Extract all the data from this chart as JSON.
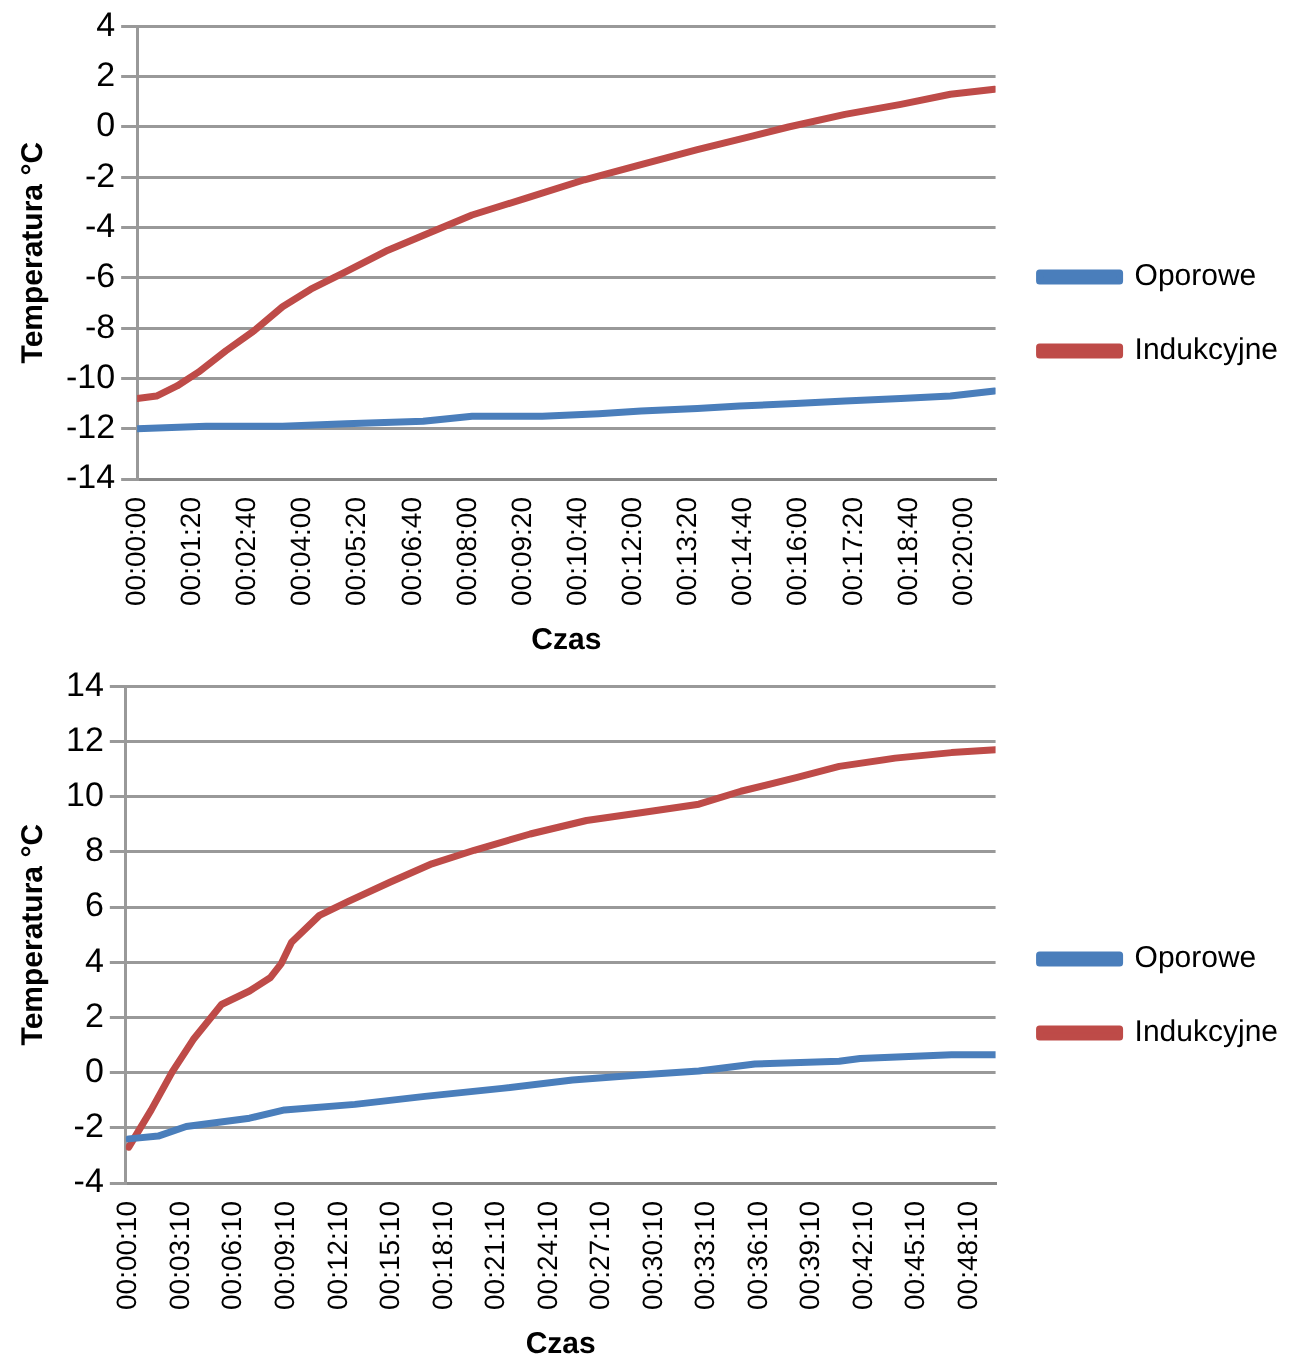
{
  "chart_data": [
    {
      "type": "line",
      "xlabel": "Czas",
      "ylabel": "Temperatura °C",
      "xlim": [
        0,
        0.346
      ],
      "ylim": [
        -14,
        4
      ],
      "yticks": [
        -14,
        -12,
        -10,
        -8,
        -6,
        -4,
        -2,
        0,
        2,
        4
      ],
      "xticks": [
        {
          "value": 0,
          "label": "00:00:00"
        },
        {
          "value": 0.02222,
          "label": "00:01:20"
        },
        {
          "value": 0.04444,
          "label": "00:02:40"
        },
        {
          "value": 0.06667,
          "label": "00:04:00"
        },
        {
          "value": 0.08889,
          "label": "00:05:20"
        },
        {
          "value": 0.11111,
          "label": "00:06:40"
        },
        {
          "value": 0.13333,
          "label": "00:08:00"
        },
        {
          "value": 0.15556,
          "label": "00:09:20"
        },
        {
          "value": 0.17778,
          "label": "00:10:40"
        },
        {
          "value": 0.2,
          "label": "00:12:00"
        },
        {
          "value": 0.22222,
          "label": "00:13:20"
        },
        {
          "value": 0.24444,
          "label": "00:14:40"
        },
        {
          "value": 0.26667,
          "label": "00:16:00"
        },
        {
          "value": 0.28889,
          "label": "00:17:20"
        },
        {
          "value": 0.31111,
          "label": "00:18:40"
        },
        {
          "value": 0.33333,
          "label": "00:20:00"
        }
      ],
      "grid": "y",
      "legend": "right",
      "marker": "none",
      "line_style": "solid",
      "series": [
        {
          "name": "Oporowe",
          "color": "#4a7ebb",
          "x": [
            0,
            0.0278,
            0.0586,
            0.0842,
            0.1153,
            0.135,
            0.1633,
            0.1861,
            0.2031,
            0.2258,
            0.2428,
            0.2653,
            0.2853,
            0.3078,
            0.3278,
            0.3456
          ],
          "values": [
            -12,
            -11.9,
            -11.9,
            -11.8,
            -11.7,
            -11.5,
            -11.5,
            -11.4,
            -11.3,
            -11.2,
            -11.1,
            -11,
            -10.9,
            -10.8,
            -10.7,
            -10.5
          ]
        },
        {
          "name": "Indukcyjne",
          "color": "#be4b48",
          "x": [
            0,
            0.0078,
            0.0161,
            0.0247,
            0.0358,
            0.0472,
            0.0586,
            0.07,
            0.0842,
            0.1011,
            0.1181,
            0.135,
            0.1578,
            0.1803,
            0.2031,
            0.2258,
            0.2483,
            0.2625,
            0.2853,
            0.3078,
            0.3278,
            0.3456
          ],
          "values": [
            -10.8,
            -10.7,
            -10.3,
            -9.75,
            -8.9,
            -8.1,
            -7.15,
            -6.45,
            -5.75,
            -4.9,
            -4.2,
            -3.5,
            -2.8,
            -2.1,
            -1.5,
            -0.9,
            -0.35,
            0,
            0.5,
            0.9,
            1.3,
            1.5
          ]
        }
      ]
    },
    {
      "type": "line",
      "xlabel": "Czas",
      "ylabel": "Temperatura °C",
      "xlim": [
        0,
        0.8281
      ],
      "ylim": [
        -4,
        14
      ],
      "yticks": [
        -4,
        -2,
        0,
        2,
        4,
        6,
        8,
        10,
        12,
        14
      ],
      "xticks": [
        {
          "value": 0.00278,
          "label": "00:00:10"
        },
        {
          "value": 0.05278,
          "label": "00:03:10"
        },
        {
          "value": 0.10278,
          "label": "00:06:10"
        },
        {
          "value": 0.15278,
          "label": "00:09:10"
        },
        {
          "value": 0.20278,
          "label": "00:12:10"
        },
        {
          "value": 0.25278,
          "label": "00:15:10"
        },
        {
          "value": 0.30278,
          "label": "00:18:10"
        },
        {
          "value": 0.35278,
          "label": "00:21:10"
        },
        {
          "value": 0.40278,
          "label": "00:24:10"
        },
        {
          "value": 0.45278,
          "label": "00:27:10"
        },
        {
          "value": 0.50278,
          "label": "00:30:10"
        },
        {
          "value": 0.55278,
          "label": "00:33:10"
        },
        {
          "value": 0.60278,
          "label": "00:36:10"
        },
        {
          "value": 0.65278,
          "label": "00:39:10"
        },
        {
          "value": 0.70278,
          "label": "00:42:10"
        },
        {
          "value": 0.75278,
          "label": "00:45:10"
        },
        {
          "value": 0.80278,
          "label": "00:48:10"
        }
      ],
      "grid": "y",
      "legend": "right",
      "marker": "none",
      "line_style": "solid",
      "series": [
        {
          "name": "Oporowe",
          "color": "#4a7ebb",
          "x": [
            0.0028,
            0.0308,
            0.0575,
            0.1178,
            0.1511,
            0.2181,
            0.2847,
            0.3583,
            0.4253,
            0.4919,
            0.5456,
            0.5989,
            0.6792,
            0.6992,
            0.7861,
            0.8281
          ],
          "values": [
            -2.4,
            -2.3,
            -1.95,
            -1.65,
            -1.35,
            -1.15,
            -0.86,
            -0.57,
            -0.27,
            -0.08,
            0.06,
            0.31,
            0.41,
            0.51,
            0.65,
            0.65
          ]
        },
        {
          "name": "Indukcyjne",
          "color": "#be4b48",
          "x": [
            0.0028,
            0.0242,
            0.0442,
            0.0642,
            0.0911,
            0.1178,
            0.1378,
            0.1478,
            0.1578,
            0.1844,
            0.2114,
            0.2514,
            0.2914,
            0.3317,
            0.385,
            0.4386,
            0.4919,
            0.5456,
            0.5856,
            0.6392,
            0.6792,
            0.7325,
            0.7861,
            0.8281
          ],
          "values": [
            -2.7,
            -1.35,
            0.03,
            1.2,
            2.47,
            2.96,
            3.45,
            3.94,
            4.73,
            5.7,
            6.2,
            6.9,
            7.57,
            8.06,
            8.65,
            9.14,
            9.43,
            9.73,
            10.2,
            10.7,
            11.1,
            11.4,
            11.6,
            11.7
          ]
        }
      ]
    }
  ]
}
